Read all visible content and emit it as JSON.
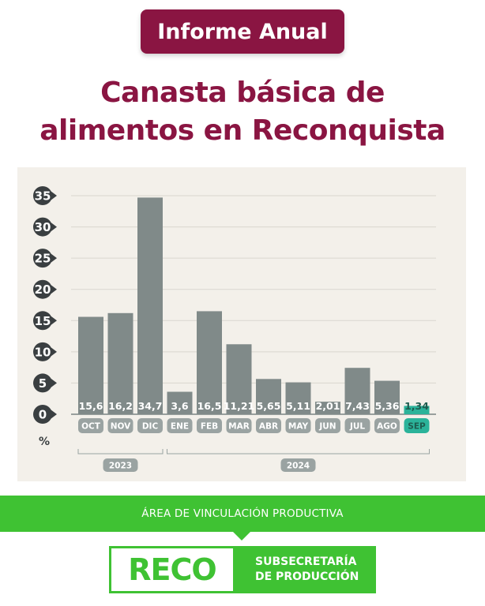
{
  "header": {
    "badge": "Informe Anual",
    "title_line1": "Canasta básica de",
    "title_line2": "alimentos en Reconquista"
  },
  "chart_data": {
    "type": "bar",
    "title": "",
    "xlabel": "",
    "ylabel": "%",
    "ylim": [
      0,
      35
    ],
    "yticks": [
      "0",
      "5",
      "10",
      "15",
      "20",
      "25",
      "30",
      "35"
    ],
    "grid": true,
    "categories": [
      "OCT",
      "NOV",
      "DIC",
      "ENE",
      "FEB",
      "MAR",
      "ABR",
      "MAY",
      "JUN",
      "JUL",
      "AGO",
      "SEP"
    ],
    "values": [
      15.6,
      16.2,
      34.7,
      3.6,
      16.5,
      11.21,
      5.65,
      5.11,
      2.01,
      7.43,
      5.36,
      1.34
    ],
    "value_labels": [
      "15,6",
      "16,2",
      "34,7",
      "3,6",
      "16,5",
      "11,21",
      "5,65",
      "5,11",
      "2,01",
      "7,43",
      "5,36",
      "1,34"
    ],
    "highlight_index": 11,
    "groups": [
      {
        "label": "2023",
        "from": 0,
        "to": 2
      },
      {
        "label": "2024",
        "from": 3,
        "to": 11
      }
    ],
    "colors": {
      "bar": "#808a89",
      "highlight": "#2bb39a",
      "tick_marker": "#3a3f41"
    }
  },
  "footer": {
    "band_text": "ÁREA DE VINCULACIÓN PRODUCTIVA",
    "logo_word": "RECO",
    "logo_line1": "SUBSECRETARÍA",
    "logo_line2": "DE PRODUCCIÓN"
  },
  "colors": {
    "brand": "#8a1542",
    "green": "#3fc233",
    "panel": "#f3f0ea"
  }
}
